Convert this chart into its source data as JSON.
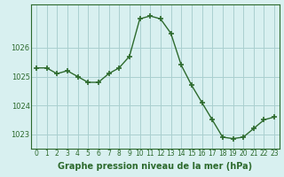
{
  "x": [
    0,
    1,
    2,
    3,
    4,
    5,
    6,
    7,
    8,
    9,
    10,
    11,
    12,
    13,
    14,
    15,
    16,
    17,
    18,
    19,
    20,
    21,
    22,
    23
  ],
  "y": [
    1025.3,
    1025.3,
    1025.1,
    1025.2,
    1025.0,
    1024.8,
    1024.8,
    1025.1,
    1025.3,
    1025.7,
    1027.0,
    1027.1,
    1027.0,
    1026.5,
    1025.4,
    1024.7,
    1024.1,
    1023.5,
    1022.9,
    1022.85,
    1022.9,
    1023.2,
    1023.5,
    1023.6
  ],
  "line_color": "#2d6a2d",
  "marker": "+",
  "marker_size": 4,
  "bg_color": "#d8f0f0",
  "grid_color": "#aacfcf",
  "axis_color": "#2d6a2d",
  "xlabel": "Graphe pression niveau de la mer (hPa)",
  "xlabel_fontsize": 7,
  "tick_label_color": "#2d6a2d",
  "ylim": [
    1022.5,
    1027.5
  ],
  "yticks": [
    1023,
    1024,
    1025,
    1026
  ],
  "xticks": [
    0,
    1,
    2,
    3,
    4,
    5,
    6,
    7,
    8,
    9,
    10,
    11,
    12,
    13,
    14,
    15,
    16,
    17,
    18,
    19,
    20,
    21,
    22,
    23
  ],
  "line_width": 1.0,
  "marker_color": "#2d6a2d",
  "tick_fontsize": 6.0,
  "xtick_fontsize": 5.5
}
